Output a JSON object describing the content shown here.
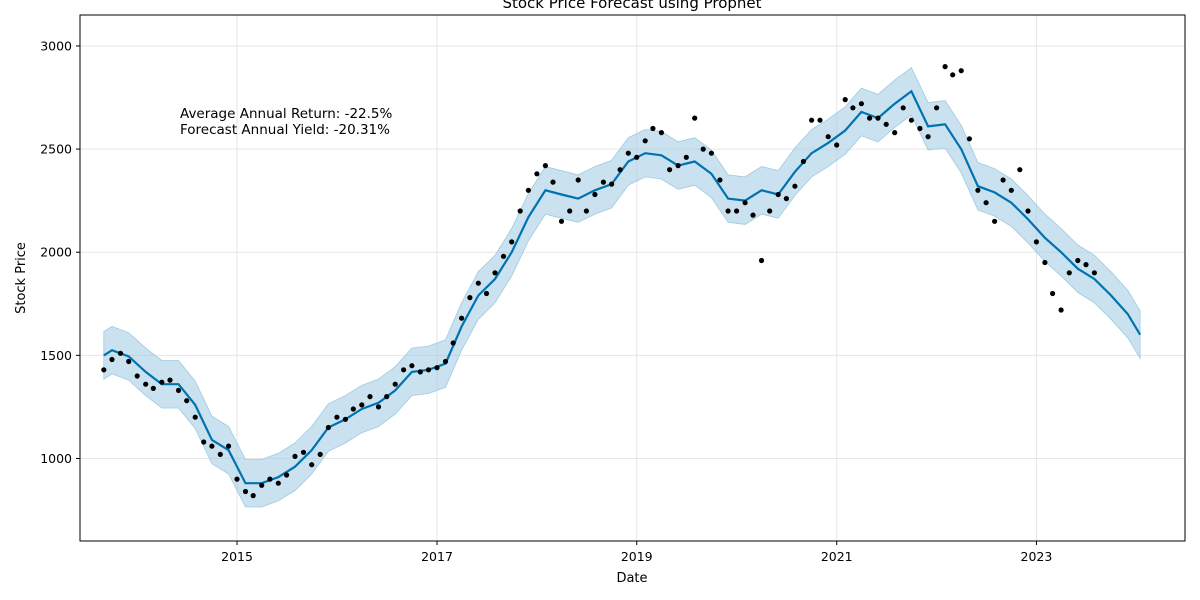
{
  "chart_data": {
    "type": "line",
    "title": "Stock Price Forecast using Prophet",
    "xlabel": "Date",
    "ylabel": "Stock Price",
    "xlim": [
      "2013-06-06",
      "2024-06-27"
    ],
    "ylim": [
      600,
      3150
    ],
    "x_ticks": [
      "2015",
      "2017",
      "2019",
      "2021",
      "2023"
    ],
    "y_ticks": [
      1000,
      1500,
      2000,
      2500,
      3000
    ],
    "grid": true,
    "colors": {
      "forecast_line": "#0072B2",
      "uncertainty_band": "#9ecae1",
      "observed_points": "#000000",
      "grid": "#e6e6e6"
    },
    "annotations": [
      "Average Annual Return: -22.5%",
      "Forecast Annual Yield: -20.31%"
    ],
    "series": [
      {
        "kind": "forecast",
        "points": [
          [
            "2013-09-01",
            1500
          ],
          [
            "2013-10-01",
            1525
          ],
          [
            "2013-12-01",
            1495
          ],
          [
            "2014-02-01",
            1420
          ],
          [
            "2014-04-01",
            1360
          ],
          [
            "2014-06-01",
            1360
          ],
          [
            "2014-08-01",
            1260
          ],
          [
            "2014-10-01",
            1090
          ],
          [
            "2014-12-01",
            1040
          ],
          [
            "2015-02-01",
            880
          ],
          [
            "2015-04-01",
            880
          ],
          [
            "2015-06-01",
            910
          ],
          [
            "2015-08-01",
            960
          ],
          [
            "2015-10-01",
            1040
          ],
          [
            "2015-12-01",
            1150
          ],
          [
            "2016-02-01",
            1190
          ],
          [
            "2016-04-01",
            1240
          ],
          [
            "2016-06-01",
            1270
          ],
          [
            "2016-08-01",
            1330
          ],
          [
            "2016-10-01",
            1420
          ],
          [
            "2016-12-01",
            1430
          ],
          [
            "2017-02-01",
            1460
          ],
          [
            "2017-04-01",
            1640
          ],
          [
            "2017-06-01",
            1790
          ],
          [
            "2017-08-01",
            1870
          ],
          [
            "2017-10-01",
            2000
          ],
          [
            "2017-12-01",
            2170
          ],
          [
            "2018-02-01",
            2300
          ],
          [
            "2018-04-01",
            2280
          ],
          [
            "2018-06-01",
            2260
          ],
          [
            "2018-08-01",
            2300
          ],
          [
            "2018-10-01",
            2330
          ],
          [
            "2018-12-01",
            2440
          ],
          [
            "2019-02-01",
            2480
          ],
          [
            "2019-04-01",
            2470
          ],
          [
            "2019-06-01",
            2420
          ],
          [
            "2019-08-01",
            2440
          ],
          [
            "2019-10-01",
            2380
          ],
          [
            "2019-12-01",
            2260
          ],
          [
            "2020-02-01",
            2250
          ],
          [
            "2020-04-01",
            2300
          ],
          [
            "2020-06-01",
            2280
          ],
          [
            "2020-08-01",
            2390
          ],
          [
            "2020-10-01",
            2480
          ],
          [
            "2020-12-01",
            2530
          ],
          [
            "2021-02-01",
            2590
          ],
          [
            "2021-04-01",
            2680
          ],
          [
            "2021-06-01",
            2650
          ],
          [
            "2021-08-01",
            2720
          ],
          [
            "2021-10-01",
            2780
          ],
          [
            "2021-12-01",
            2610
          ],
          [
            "2022-02-01",
            2620
          ],
          [
            "2022-04-01",
            2500
          ],
          [
            "2022-06-01",
            2320
          ],
          [
            "2022-08-01",
            2290
          ],
          [
            "2022-10-01",
            2240
          ],
          [
            "2022-12-01",
            2160
          ],
          [
            "2023-02-01",
            2070
          ],
          [
            "2023-04-01",
            2000
          ],
          [
            "2023-06-01",
            1920
          ],
          [
            "2023-08-01",
            1870
          ],
          [
            "2023-10-01",
            1790
          ],
          [
            "2023-12-01",
            1700
          ],
          [
            "2024-01-15",
            1600
          ]
        ]
      },
      {
        "kind": "observed",
        "points": [
          [
            "2013-09-01",
            1430
          ],
          [
            "2013-10-01",
            1480
          ],
          [
            "2013-11-01",
            1510
          ],
          [
            "2013-12-01",
            1470
          ],
          [
            "2014-01-01",
            1400
          ],
          [
            "2014-02-01",
            1360
          ],
          [
            "2014-03-01",
            1340
          ],
          [
            "2014-04-01",
            1370
          ],
          [
            "2014-05-01",
            1380
          ],
          [
            "2014-06-01",
            1330
          ],
          [
            "2014-07-01",
            1280
          ],
          [
            "2014-08-01",
            1200
          ],
          [
            "2014-09-01",
            1080
          ],
          [
            "2014-10-01",
            1060
          ],
          [
            "2014-11-01",
            1020
          ],
          [
            "2014-12-01",
            1060
          ],
          [
            "2015-01-01",
            900
          ],
          [
            "2015-02-01",
            840
          ],
          [
            "2015-03-01",
            820
          ],
          [
            "2015-04-01",
            870
          ],
          [
            "2015-05-01",
            900
          ],
          [
            "2015-06-01",
            880
          ],
          [
            "2015-07-01",
            920
          ],
          [
            "2015-08-01",
            1010
          ],
          [
            "2015-09-01",
            1030
          ],
          [
            "2015-10-01",
            970
          ],
          [
            "2015-11-01",
            1020
          ],
          [
            "2015-12-01",
            1150
          ],
          [
            "2016-01-01",
            1200
          ],
          [
            "2016-02-01",
            1190
          ],
          [
            "2016-03-01",
            1240
          ],
          [
            "2016-04-01",
            1260
          ],
          [
            "2016-05-01",
            1300
          ],
          [
            "2016-06-01",
            1250
          ],
          [
            "2016-07-01",
            1300
          ],
          [
            "2016-08-01",
            1360
          ],
          [
            "2016-09-01",
            1430
          ],
          [
            "2016-10-01",
            1450
          ],
          [
            "2016-11-01",
            1420
          ],
          [
            "2016-12-01",
            1430
          ],
          [
            "2017-01-01",
            1440
          ],
          [
            "2017-02-01",
            1470
          ],
          [
            "2017-03-01",
            1560
          ],
          [
            "2017-04-01",
            1680
          ],
          [
            "2017-05-01",
            1780
          ],
          [
            "2017-06-01",
            1850
          ],
          [
            "2017-07-01",
            1800
          ],
          [
            "2017-08-01",
            1900
          ],
          [
            "2017-09-01",
            1980
          ],
          [
            "2017-10-01",
            2050
          ],
          [
            "2017-11-01",
            2200
          ],
          [
            "2017-12-01",
            2300
          ],
          [
            "2018-01-01",
            2380
          ],
          [
            "2018-02-01",
            2420
          ],
          [
            "2018-03-01",
            2340
          ],
          [
            "2018-04-01",
            2150
          ],
          [
            "2018-05-01",
            2200
          ],
          [
            "2018-06-01",
            2350
          ],
          [
            "2018-07-01",
            2200
          ],
          [
            "2018-08-01",
            2280
          ],
          [
            "2018-09-01",
            2340
          ],
          [
            "2018-10-01",
            2330
          ],
          [
            "2018-11-01",
            2400
          ],
          [
            "2018-12-01",
            2480
          ],
          [
            "2019-01-01",
            2460
          ],
          [
            "2019-02-01",
            2540
          ],
          [
            "2019-03-01",
            2600
          ],
          [
            "2019-04-01",
            2580
          ],
          [
            "2019-05-01",
            2400
          ],
          [
            "2019-06-01",
            2420
          ],
          [
            "2019-07-01",
            2460
          ],
          [
            "2019-08-01",
            2650
          ],
          [
            "2019-09-01",
            2500
          ],
          [
            "2019-10-01",
            2480
          ],
          [
            "2019-11-01",
            2350
          ],
          [
            "2019-12-01",
            2200
          ],
          [
            "2020-01-01",
            2200
          ],
          [
            "2020-02-01",
            2240
          ],
          [
            "2020-03-01",
            2180
          ],
          [
            "2020-04-01",
            1960
          ],
          [
            "2020-05-01",
            2200
          ],
          [
            "2020-06-01",
            2280
          ],
          [
            "2020-07-01",
            2260
          ],
          [
            "2020-08-01",
            2320
          ],
          [
            "2020-09-01",
            2440
          ],
          [
            "2020-10-01",
            2640
          ],
          [
            "2020-11-01",
            2640
          ],
          [
            "2020-12-01",
            2560
          ],
          [
            "2021-01-01",
            2520
          ],
          [
            "2021-02-01",
            2740
          ],
          [
            "2021-03-01",
            2700
          ],
          [
            "2021-04-01",
            2720
          ],
          [
            "2021-05-01",
            2650
          ],
          [
            "2021-06-01",
            2650
          ],
          [
            "2021-07-01",
            2620
          ],
          [
            "2021-08-01",
            2580
          ],
          [
            "2021-09-01",
            2700
          ],
          [
            "2021-10-01",
            2640
          ],
          [
            "2021-11-01",
            2600
          ],
          [
            "2021-12-01",
            2560
          ],
          [
            "2022-01-01",
            2700
          ],
          [
            "2022-02-01",
            2900
          ],
          [
            "2022-03-01",
            2860
          ],
          [
            "2022-04-01",
            2880
          ],
          [
            "2022-05-01",
            2550
          ],
          [
            "2022-06-01",
            2300
          ],
          [
            "2022-07-01",
            2240
          ],
          [
            "2022-08-01",
            2150
          ],
          [
            "2022-09-01",
            2350
          ],
          [
            "2022-10-01",
            2300
          ],
          [
            "2022-11-01",
            2400
          ],
          [
            "2022-12-01",
            2200
          ],
          [
            "2023-01-01",
            2050
          ],
          [
            "2023-02-01",
            1950
          ],
          [
            "2023-03-01",
            1800
          ],
          [
            "2023-04-01",
            1720
          ],
          [
            "2023-05-01",
            1900
          ],
          [
            "2023-06-01",
            1960
          ],
          [
            "2023-07-01",
            1940
          ],
          [
            "2023-08-01",
            1900
          ]
        ]
      }
    ]
  }
}
